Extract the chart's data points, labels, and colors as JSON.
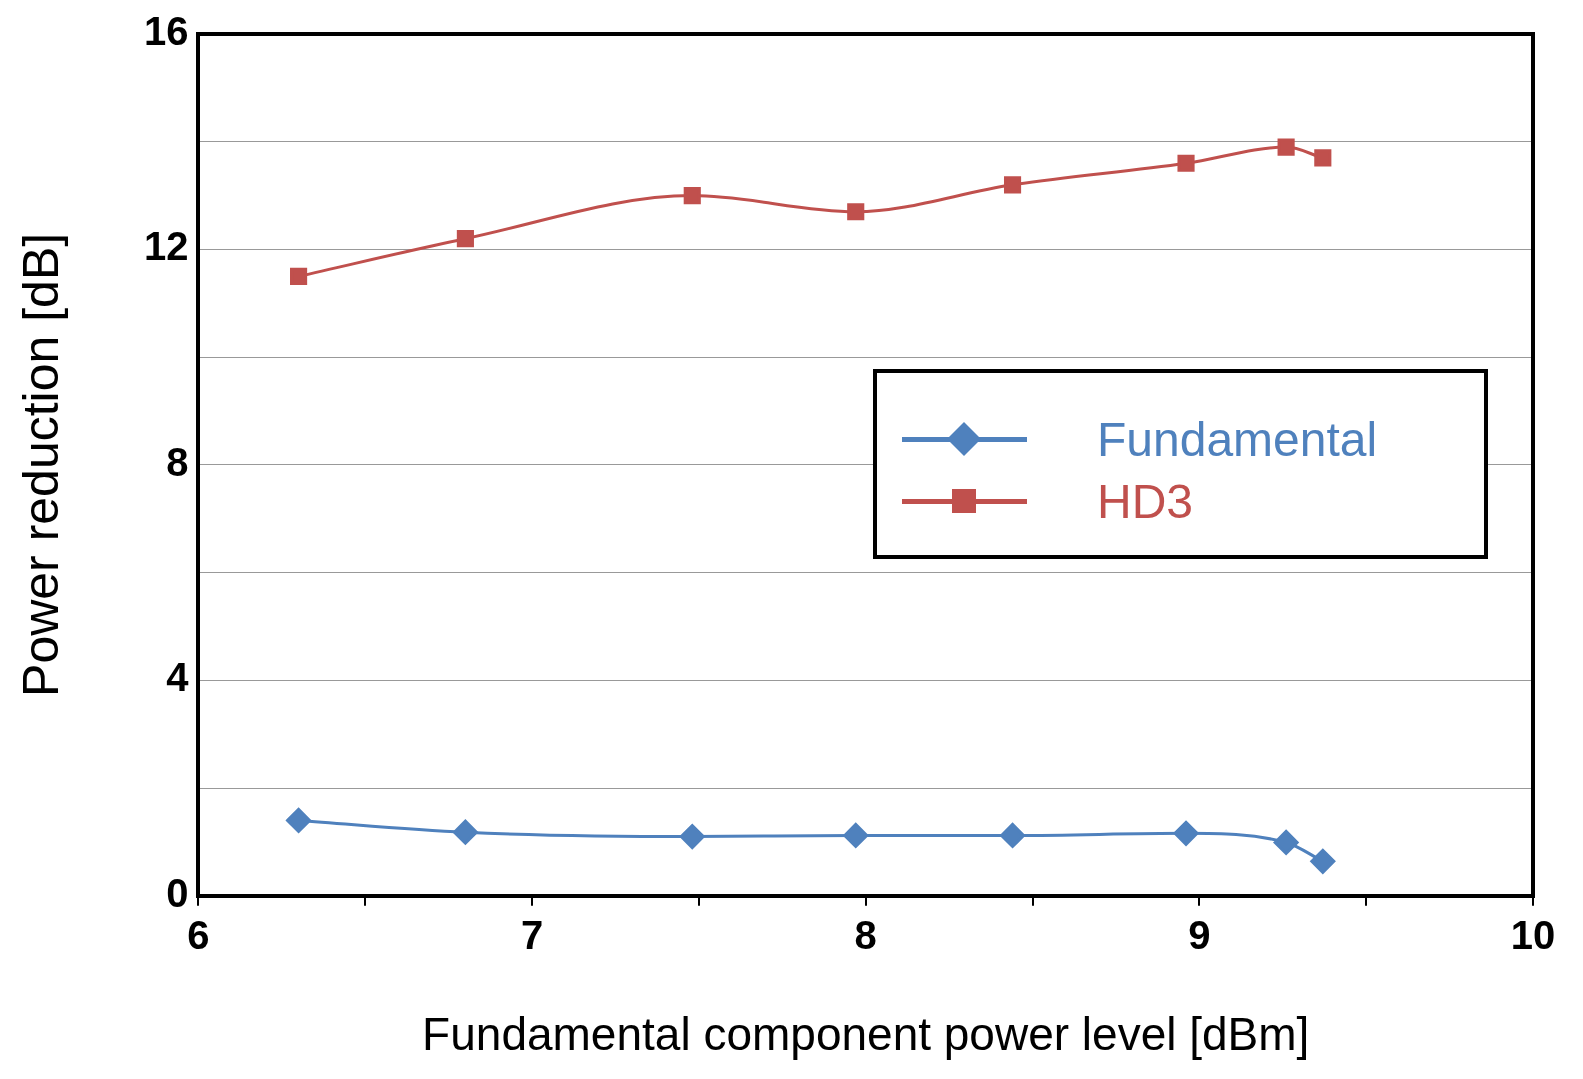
{
  "chart_data": {
    "type": "line",
    "xlabel": "Fundamental component power level [dBm]",
    "ylabel": "Power reduction [dB]",
    "x": [
      6.3,
      6.8,
      7.48,
      7.97,
      8.44,
      8.96,
      9.26,
      9.37
    ],
    "series": [
      {
        "name": "Fundamental",
        "color": "#4f81bd",
        "marker": "diamond",
        "values": [
          1.4,
          1.18,
          1.1,
          1.12,
          1.12,
          1.16,
          0.99,
          0.64
        ]
      },
      {
        "name": "HD3",
        "color": "#c0504d",
        "marker": "square",
        "values": [
          11.5,
          12.2,
          13.0,
          12.7,
          13.2,
          13.6,
          13.9,
          13.7
        ]
      }
    ],
    "xlim": [
      6,
      10
    ],
    "xticks": [
      6,
      {
        "value": 6.5,
        "label": null
      },
      7,
      {
        "value": 7.5,
        "label": null
      },
      8,
      {
        "value": 8.5,
        "label": null
      },
      9,
      {
        "value": 9.5,
        "label": null
      },
      10
    ],
    "ylim": [
      0,
      16
    ],
    "yticks": [
      0,
      {
        "value": 2,
        "label": null
      },
      4,
      {
        "value": 6,
        "label": null
      },
      8,
      {
        "value": 10,
        "label": null
      },
      12,
      {
        "value": 14,
        "label": null
      },
      16
    ],
    "grid": "y",
    "legend": "right",
    "line_style": "solid"
  }
}
